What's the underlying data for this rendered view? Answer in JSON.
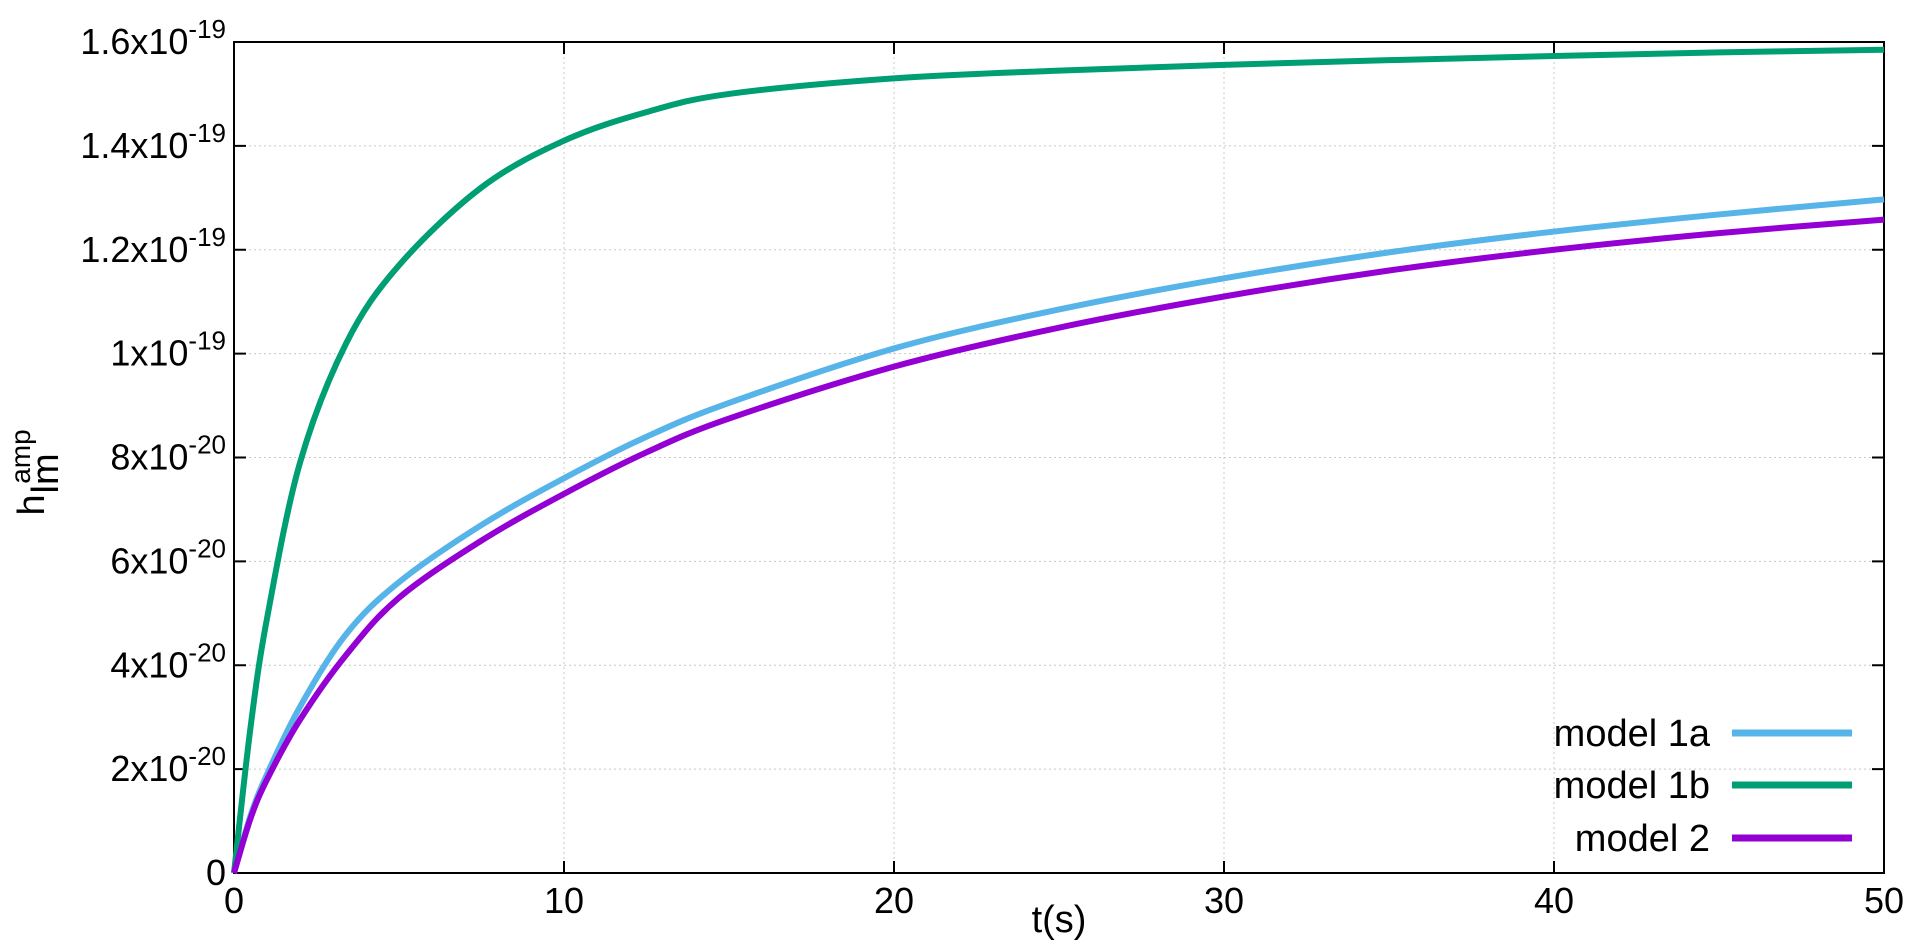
{
  "chart_data": {
    "type": "line",
    "xlabel": "t(s)",
    "ylabel": {
      "base": "h",
      "sub": "lm",
      "sup": "amp"
    },
    "xlim": [
      0,
      50
    ],
    "ylim": [
      0,
      1.6e-19
    ],
    "grid": true,
    "legend_position": "bottom-right",
    "x_ticks": [
      {
        "value": 0,
        "label": "0"
      },
      {
        "value": 10,
        "label": "10"
      },
      {
        "value": 20,
        "label": "20"
      },
      {
        "value": 30,
        "label": "30"
      },
      {
        "value": 40,
        "label": "40"
      },
      {
        "value": 50,
        "label": "50"
      }
    ],
    "y_ticks": [
      {
        "value": 0,
        "mantissa": "0",
        "exp": ""
      },
      {
        "value": 2e-20,
        "mantissa": "2x10",
        "exp": "-20"
      },
      {
        "value": 4e-20,
        "mantissa": "4x10",
        "exp": "-20"
      },
      {
        "value": 6e-20,
        "mantissa": "6x10",
        "exp": "-20"
      },
      {
        "value": 8e-20,
        "mantissa": "8x10",
        "exp": "-20"
      },
      {
        "value": 1e-19,
        "mantissa": "1x10",
        "exp": "-19"
      },
      {
        "value": 1.2e-19,
        "mantissa": "1.2x10",
        "exp": "-19"
      },
      {
        "value": 1.4e-19,
        "mantissa": "1.4x10",
        "exp": "-19"
      },
      {
        "value": 1.6e-19,
        "mantissa": "1.6x10",
        "exp": "-19"
      }
    ],
    "series": [
      {
        "name": "model 1a",
        "color": "#56b4e9",
        "x": [
          0,
          0.5,
          1,
          2,
          3.4,
          5,
          7.5,
          10,
          12.5,
          15,
          20,
          25,
          30,
          35,
          40,
          45,
          50
        ],
        "y": [
          0,
          1.1e-20,
          1.9e-20,
          3.2e-20,
          4.6e-20,
          5.6e-20,
          6.7e-20,
          7.6e-20,
          8.4e-20,
          9.05e-20,
          1.01e-19,
          1.085e-19,
          1.145e-19,
          1.195e-19,
          1.235e-19,
          1.268e-19,
          1.297e-19
        ]
      },
      {
        "name": "model 1b",
        "color": "#009e73",
        "x": [
          0,
          0.5,
          1,
          2,
          3.4,
          5,
          7.5,
          10,
          12.5,
          15,
          20,
          25,
          30,
          35,
          40,
          45,
          50
        ],
        "y": [
          0,
          2.8e-20,
          4.9e-20,
          7.9e-20,
          1.02e-19,
          1.17e-19,
          1.32e-19,
          1.41e-19,
          1.465e-19,
          1.5e-19,
          1.53e-19,
          1.545e-19,
          1.556e-19,
          1.565e-19,
          1.573e-19,
          1.58e-19,
          1.585e-19
        ]
      },
      {
        "name": "model 2",
        "color": "#9400d3",
        "x": [
          0,
          0.5,
          1,
          2,
          3.4,
          5,
          7.5,
          10,
          12.5,
          15,
          20,
          25,
          30,
          35,
          40,
          45,
          50
        ],
        "y": [
          0,
          1.05e-20,
          1.8e-20,
          2.95e-20,
          4.2e-20,
          5.3e-20,
          6.4e-20,
          7.3e-20,
          8.1e-20,
          8.75e-20,
          9.75e-20,
          1.05e-19,
          1.11e-19,
          1.16e-19,
          1.2e-19,
          1.232e-19,
          1.258e-19
        ]
      }
    ]
  }
}
